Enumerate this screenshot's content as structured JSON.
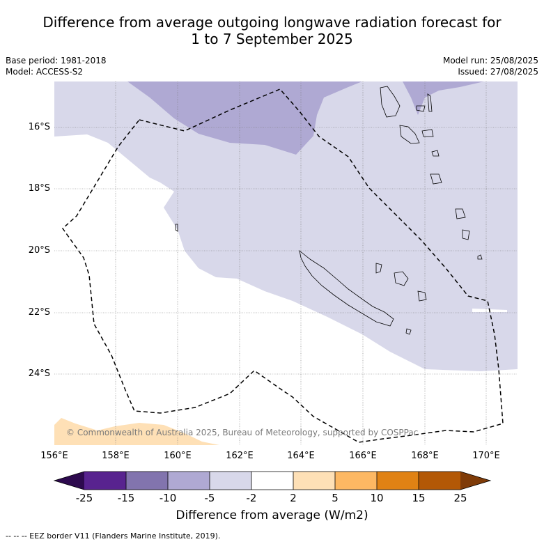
{
  "title_line1": "Difference from average outgoing longwave radiation forecast for",
  "title_line2": "1 to 7 September 2025",
  "base_period": "Base period: 1981-2018",
  "model": "Model: ACCESS-S2",
  "model_run": "Model run: 25/08/2025",
  "issued": "Issued: 27/08/2025",
  "lat_labels": [
    "16°S",
    "18°S",
    "20°S",
    "22°S",
    "24°S"
  ],
  "lon_labels": [
    "156°E",
    "158°E",
    "160°E",
    "162°E",
    "164°E",
    "166°E",
    "168°E",
    "170°E"
  ],
  "colorbar": {
    "ticks": [
      "-25",
      "-15",
      "-10",
      "-5",
      "-2",
      "2",
      "5",
      "10",
      "15",
      "25"
    ],
    "colors": [
      "#2d0a4e",
      "#58238f",
      "#8274ae",
      "#afa9d3",
      "#d8d8ea",
      "#ffffff",
      "#fee0b6",
      "#fdb863",
      "#e08214",
      "#b35806",
      "#7f3b08"
    ],
    "label": "Difference from average (W/m2)"
  },
  "copyright": "© Commonwealth of Australia 2025, Bureau of Meteorology, supported by COSPPac",
  "footnote": "--  --  -- EEZ border V11 (Flanders Marine Institute, 2019)."
}
